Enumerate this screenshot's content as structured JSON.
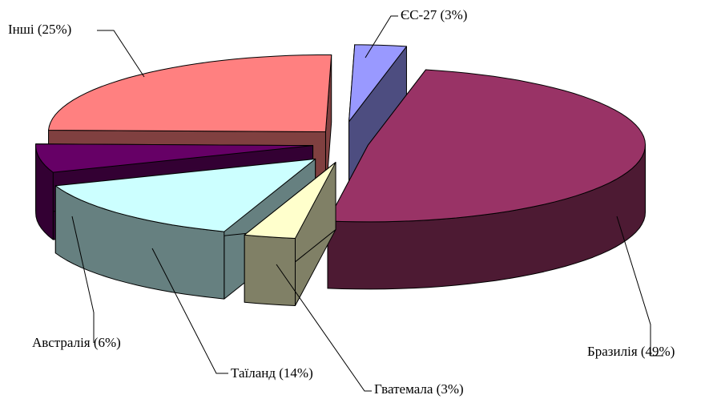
{
  "chart_data": {
    "type": "pie",
    "style": "3d-exploded",
    "title": "",
    "slices": [
      {
        "name": "Бразилія",
        "value": 49,
        "label": "Бразилія (49%)",
        "top": "#993366",
        "side": "#4d1a33"
      },
      {
        "name": "Гватемала",
        "value": 3,
        "label": "Гватемала (3%)",
        "top": "#ffffcc",
        "side": "#808066"
      },
      {
        "name": "Таїланд",
        "value": 14,
        "label": "Таїланд (14%)",
        "top": "#ccffff",
        "side": "#668080"
      },
      {
        "name": "Австралія",
        "value": 6,
        "label": "Австралія (6%)",
        "top": "#660066",
        "side": "#330033"
      },
      {
        "name": "Інші",
        "value": 25,
        "label": "Інші (25%)",
        "top": "#ff8080",
        "side": "#804040"
      },
      {
        "name": "ЄС-27",
        "value": 3,
        "label": "ЄС-27 (3%)",
        "top": "#9999ff",
        "side": "#4d4d80"
      }
    ]
  }
}
